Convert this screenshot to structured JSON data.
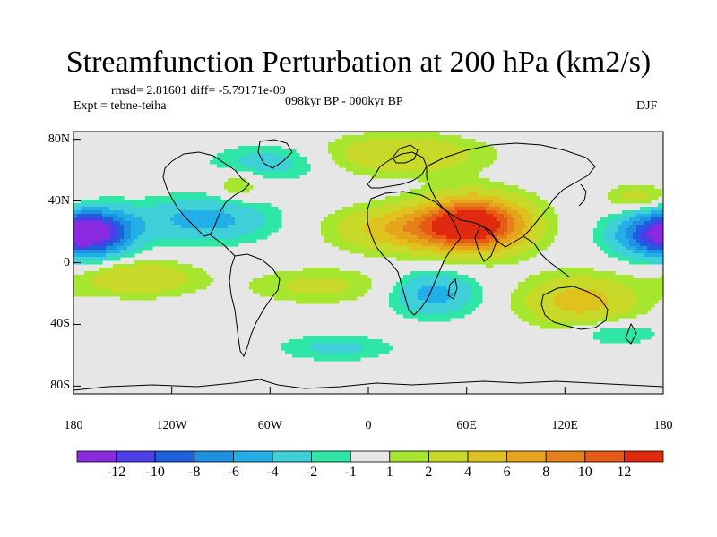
{
  "title": "Streamfunction Perturbation at 200 hPa (km2/s)",
  "stats_line": "rmsd= 2.81601 diff= -5.79171e-09",
  "left_label": "Expt = tebne-teiha",
  "center_label": "098kyr BP - 000kyr BP",
  "right_label": "DJF",
  "y_ticks": [
    {
      "label": "80N",
      "lat": 80
    },
    {
      "label": "40N",
      "lat": 40
    },
    {
      "label": "0",
      "lat": 0
    },
    {
      "label": "40S",
      "lat": -40
    },
    {
      "label": "80S",
      "lat": -80
    }
  ],
  "x_ticks": [
    {
      "label": "180",
      "lon": -180
    },
    {
      "label": "120W",
      "lon": -120
    },
    {
      "label": "60W",
      "lon": -60
    },
    {
      "label": "0",
      "lon": 0
    },
    {
      "label": "60E",
      "lon": 60
    },
    {
      "label": "120E",
      "lon": 120
    },
    {
      "label": "180",
      "lon": 180
    }
  ],
  "colorbar": {
    "colors": [
      "#8a2be2",
      "#4d3ee8",
      "#1e5fe0",
      "#1e90e0",
      "#22aee6",
      "#3dd0d8",
      "#2ee6a6",
      "#e6e6e6",
      "#a6e62e",
      "#c8d92a",
      "#e0c21e",
      "#e6a41a",
      "#e6801a",
      "#e65a14",
      "#e02a10"
    ],
    "labels": [
      "-12",
      "-10",
      "-8",
      "-6",
      "-4",
      "-2",
      "-1",
      "1",
      "2",
      "4",
      "6",
      "8",
      "10",
      "12"
    ]
  },
  "field": {
    "blobs": [
      {
        "lon": 65,
        "lat": 25,
        "amp": 14,
        "sx": 22,
        "sy": 12
      },
      {
        "lon": 25,
        "lat": 22,
        "amp": 6,
        "sx": 30,
        "sy": 10
      },
      {
        "lon": 20,
        "lat": 70,
        "amp": 4,
        "sx": 35,
        "sy": 9
      },
      {
        "lon": 130,
        "lat": -25,
        "amp": 5,
        "sx": 25,
        "sy": 12
      },
      {
        "lon": -165,
        "lat": 20,
        "amp": -10,
        "sx": 16,
        "sy": 10
      },
      {
        "lon": 175,
        "lat": 18,
        "amp": -9,
        "sx": 18,
        "sy": 10
      },
      {
        "lon": -100,
        "lat": 28,
        "amp": -5,
        "sx": 28,
        "sy": 10
      },
      {
        "lon": 40,
        "lat": -20,
        "amp": -5,
        "sx": 18,
        "sy": 10
      },
      {
        "lon": -140,
        "lat": -10,
        "amp": 4,
        "sx": 25,
        "sy": 8
      },
      {
        "lon": -30,
        "lat": -15,
        "amp": 2.5,
        "sx": 30,
        "sy": 8
      },
      {
        "lon": 165,
        "lat": 42,
        "amp": 3,
        "sx": 14,
        "sy": 6
      },
      {
        "lon": -60,
        "lat": 65,
        "amp": -3,
        "sx": 25,
        "sy": 8
      },
      {
        "lon": -80,
        "lat": 50,
        "amp": 2.5,
        "sx": 10,
        "sy": 7
      },
      {
        "lon": -20,
        "lat": -55,
        "amp": -2.5,
        "sx": 25,
        "sy": 6
      },
      {
        "lon": 150,
        "lat": -45,
        "amp": -2.5,
        "sx": 20,
        "sy": 6
      }
    ]
  }
}
